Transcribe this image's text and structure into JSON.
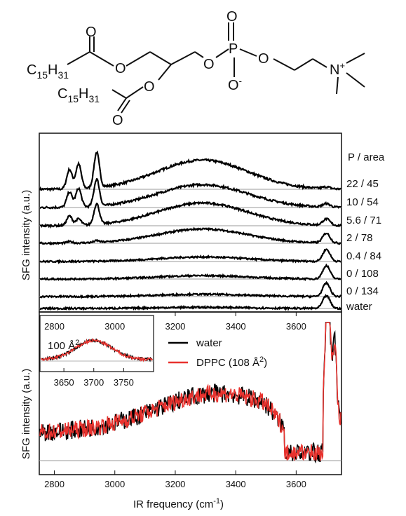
{
  "molecule": {
    "chain1": "C15H31",
    "chain2": "C15H31",
    "atoms": {
      "o_carbonyl1": "O",
      "o_ester1": "O",
      "o_carbonyl2": "O",
      "o_ester2": "O",
      "o_phos_top": "O",
      "p": "P",
      "o_phos_bridge1": "O",
      "o_phos_bridge2": "O",
      "o_minus": "O-",
      "n_plus": "N+"
    }
  },
  "chart_data": [
    {
      "type": "line",
      "panel": "top",
      "ylabel": "SFG intensity (a.u.)",
      "xlim": [
        2750,
        3750
      ],
      "x_ticks": [
        3200,
        3400,
        3600
      ],
      "legend_title": "P / area",
      "series": [
        {
          "name": "22 / 45",
          "ch_peaks": [
            [
              2850,
              0.55
            ],
            [
              2880,
              0.7
            ],
            [
              2940,
              1.0
            ]
          ],
          "oh_broad": 0.98,
          "free_oh": 0.05
        },
        {
          "name": "10 / 54",
          "ch_peaks": [
            [
              2850,
              0.45
            ],
            [
              2880,
              0.55
            ],
            [
              2940,
              0.8
            ]
          ],
          "oh_broad": 0.8,
          "free_oh": 0.1
        },
        {
          "name": "5.6 / 71",
          "ch_peaks": [
            [
              2850,
              0.3
            ],
            [
              2880,
              0.2
            ],
            [
              2940,
              0.65
            ]
          ],
          "oh_broad": 0.85,
          "free_oh": 0.2
        },
        {
          "name": "2 / 78",
          "ch_peaks": [
            [
              2850,
              0.05
            ],
            [
              2880,
              0.0
            ],
            [
              2940,
              0.06
            ]
          ],
          "oh_broad": 0.6,
          "free_oh": 0.35
        },
        {
          "name": "0.4 / 84",
          "ch_peaks": [
            [
              2850,
              0.0
            ],
            [
              2880,
              0.0
            ],
            [
              2940,
              0.0
            ]
          ],
          "oh_broad": 0.2,
          "free_oh": 0.45
        },
        {
          "name": "0 / 108",
          "ch_peaks": [
            [
              2850,
              0.0
            ],
            [
              2880,
              0.0
            ],
            [
              2940,
              0.0
            ]
          ],
          "oh_broad": 0.15,
          "free_oh": 0.5
        },
        {
          "name": "0 / 134",
          "ch_peaks": [
            [
              2850,
              0.0
            ],
            [
              2880,
              0.0
            ],
            [
              2940,
              0.0
            ]
          ],
          "oh_broad": 0.1,
          "free_oh": 0.5
        },
        {
          "name": "water",
          "ch_peaks": [
            [
              2850,
              0.0
            ],
            [
              2880,
              0.0
            ],
            [
              2940,
              0.0
            ]
          ],
          "oh_broad": 0.05,
          "free_oh": 0.45
        }
      ]
    },
    {
      "type": "line",
      "panel": "bottom",
      "xlabel": "IR frequency (cm-1)",
      "ylabel": "SFG intensity (a.u.)",
      "xlim": [
        2750,
        3750
      ],
      "x_ticks": [
        2800,
        3000,
        3200,
        3400,
        3600
      ],
      "series": [
        {
          "name": "water",
          "color": "#000000"
        },
        {
          "name": "DPPC (108 Å2)",
          "color": "#e8322e"
        }
      ]
    },
    {
      "type": "line",
      "panel": "inset",
      "annotation": "100 Å2",
      "xlim": [
        3610,
        3800
      ],
      "x_ticks_bottom": [
        3650,
        3700,
        3750
      ],
      "x_ticks_top": [
        2800,
        3000
      ],
      "peak_center": 3700
    }
  ],
  "colors": {
    "water": "#000000",
    "dppc": "#e8322e",
    "baseline": "#9a9a9a"
  }
}
